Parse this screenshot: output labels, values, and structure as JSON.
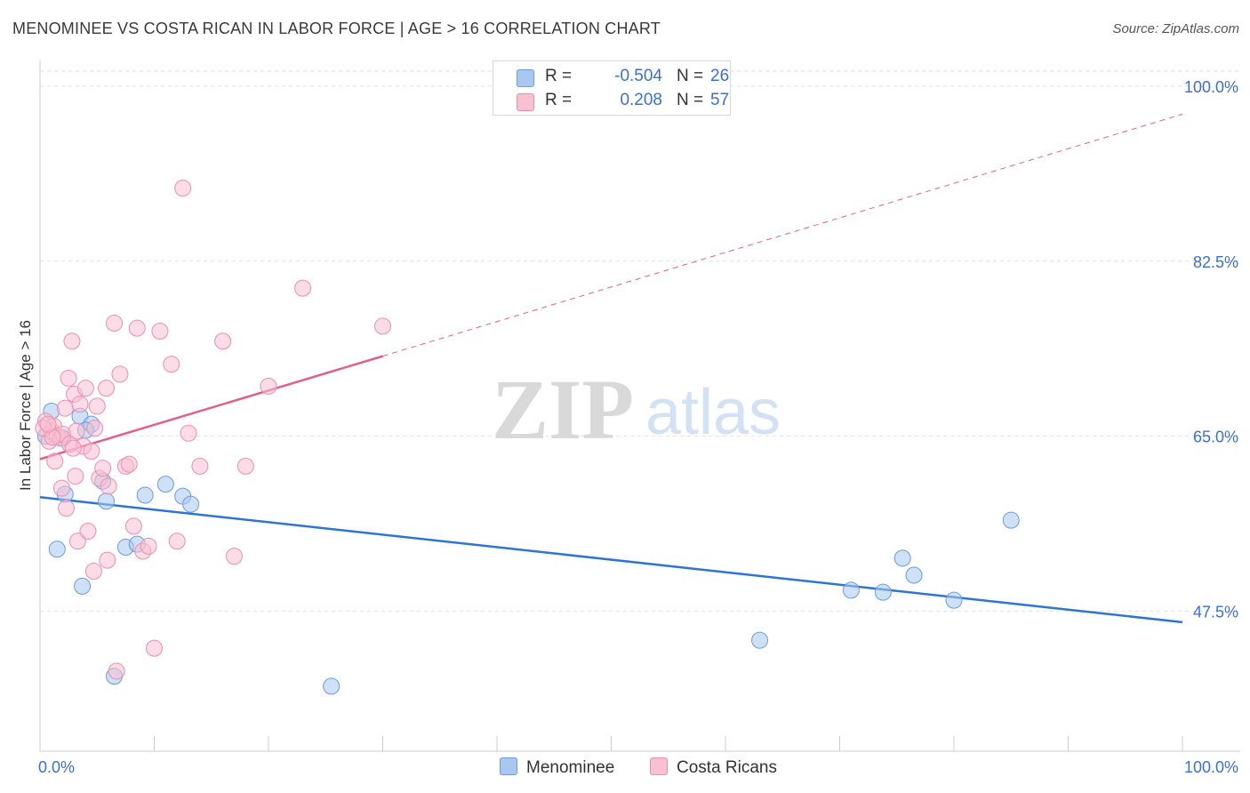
{
  "title": "MENOMINEE VS COSTA RICAN IN LABOR FORCE | AGE > 16 CORRELATION CHART",
  "source": "Source: ZipAtlas.com",
  "watermark": {
    "zip": "ZIP",
    "atlas": "atlas"
  },
  "legend": {
    "rows": [
      {
        "r_label": "R =",
        "r_value": "-0.504",
        "n_label": "N =",
        "n_value": "26",
        "color": "#a8c8f0",
        "border": "#6b9be0"
      },
      {
        "r_label": "R =",
        "r_value": "0.208",
        "n_label": "N =",
        "n_value": "57",
        "color": "#f9c0d2",
        "border": "#ec8fae"
      }
    ]
  },
  "bottom_legend": {
    "series1": "Menominee",
    "series2": "Costa Ricans"
  },
  "chart_data": {
    "type": "scatter",
    "title": "MENOMINEE VS COSTA RICAN IN LABOR FORCE | AGE > 16 CORRELATION CHART",
    "xlabel": "",
    "ylabel": "In Labor Force | Age > 16",
    "xlim": [
      0,
      100
    ],
    "ylim": [
      33.5,
      101.5
    ],
    "x_tick_labels": [
      "0.0%",
      "100.0%"
    ],
    "y_ticks": [
      47.5,
      65.0,
      82.5,
      100.0
    ],
    "y_tick_labels": [
      "47.5%",
      "65.0%",
      "82.5%",
      "100.0%"
    ],
    "series": [
      {
        "name": "Menominee",
        "color": "#a8c8f0",
        "edge": "#6b9be0",
        "trend_color": "#2f74d0",
        "trend": {
          "x0": 0,
          "y0": 58.9,
          "x1": 100,
          "y1": 46.4
        },
        "points": [
          [
            1.0,
            67.5
          ],
          [
            2.2,
            59.2
          ],
          [
            3.5,
            67.0
          ],
          [
            5.8,
            58.5
          ],
          [
            4.5,
            66.2
          ],
          [
            5.5,
            60.5
          ],
          [
            7.5,
            53.9
          ],
          [
            8.5,
            54.2
          ],
          [
            9.2,
            59.1
          ],
          [
            11.0,
            60.2
          ],
          [
            12.5,
            59.0
          ],
          [
            13.2,
            58.2
          ],
          [
            1.5,
            53.7
          ],
          [
            3.7,
            50.0
          ],
          [
            6.5,
            41.0
          ],
          [
            25.5,
            40.0
          ],
          [
            63.0,
            44.6
          ],
          [
            71.0,
            49.6
          ],
          [
            73.8,
            49.4
          ],
          [
            75.5,
            52.8
          ],
          [
            76.5,
            51.1
          ],
          [
            80.0,
            48.6
          ],
          [
            85.0,
            56.6
          ],
          [
            0.5,
            65.0
          ],
          [
            2.0,
            64.8
          ],
          [
            4.0,
            65.6
          ]
        ]
      },
      {
        "name": "Costa Ricans",
        "color": "#f9c0d2",
        "edge": "#ec8fae",
        "trend_color": "#e0608a",
        "trend": {
          "x0": 0,
          "y0": 62.7,
          "x1": 30,
          "y1": 73.0
        },
        "trend_dashed": {
          "x0": 30,
          "y0": 73.0,
          "x1": 100,
          "y1": 97.2
        },
        "points": [
          [
            0.5,
            66.5
          ],
          [
            0.8,
            64.5
          ],
          [
            1.0,
            65.5
          ],
          [
            1.2,
            66.0
          ],
          [
            1.5,
            65.0
          ],
          [
            1.8,
            64.8
          ],
          [
            0.3,
            65.8
          ],
          [
            2.0,
            65.2
          ],
          [
            1.3,
            62.5
          ],
          [
            2.2,
            67.8
          ],
          [
            2.5,
            70.8
          ],
          [
            2.8,
            74.5
          ],
          [
            3.0,
            69.2
          ],
          [
            3.2,
            65.5
          ],
          [
            3.5,
            68.2
          ],
          [
            3.8,
            64.0
          ],
          [
            4.0,
            69.8
          ],
          [
            4.5,
            63.5
          ],
          [
            4.8,
            65.8
          ],
          [
            5.0,
            68.0
          ],
          [
            5.2,
            60.8
          ],
          [
            5.5,
            61.8
          ],
          [
            5.8,
            69.8
          ],
          [
            6.0,
            60.0
          ],
          [
            6.5,
            76.3
          ],
          [
            7.0,
            71.2
          ],
          [
            7.5,
            62.0
          ],
          [
            7.8,
            62.2
          ],
          [
            8.2,
            56.0
          ],
          [
            8.5,
            75.8
          ],
          [
            9.0,
            53.5
          ],
          [
            9.5,
            54.0
          ],
          [
            10.0,
            43.8
          ],
          [
            10.5,
            75.5
          ],
          [
            11.5,
            72.2
          ],
          [
            12.0,
            54.5
          ],
          [
            12.5,
            89.8
          ],
          [
            13.0,
            65.3
          ],
          [
            16.0,
            74.5
          ],
          [
            17.0,
            53.0
          ],
          [
            18.0,
            62.0
          ],
          [
            20.0,
            70.0
          ],
          [
            23.0,
            79.8
          ],
          [
            30.0,
            76.0
          ],
          [
            14.0,
            62.0
          ],
          [
            2.3,
            57.8
          ],
          [
            3.3,
            54.5
          ],
          [
            4.2,
            55.5
          ],
          [
            4.7,
            51.5
          ],
          [
            5.9,
            52.6
          ],
          [
            6.7,
            41.5
          ],
          [
            1.9,
            59.8
          ],
          [
            2.6,
            64.2
          ],
          [
            3.1,
            61.0
          ],
          [
            1.1,
            64.9
          ],
          [
            0.7,
            66.2
          ],
          [
            2.9,
            63.8
          ]
        ]
      }
    ]
  }
}
